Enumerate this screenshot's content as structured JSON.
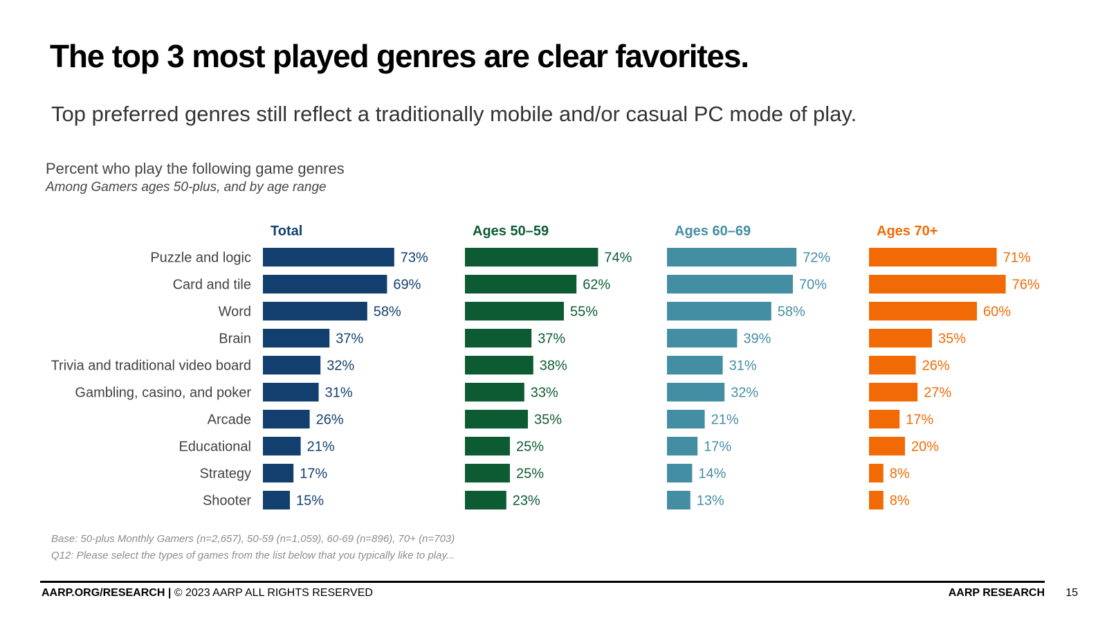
{
  "slide": {
    "title": "The top 3 most played genres are clear favorites.",
    "subtitle": "Top preferred genres still reflect a traditionally mobile and/or casual PC mode of play.",
    "footnote_base": "Base: 50-plus Monthly Gamers (n=2,657), 50-59 (n=1,059), 60-69 (n=896), 70+ (n=703)",
    "footnote_question": "Q12: Please select the types of games from the list below that you typically like to play...",
    "footer_left_bold": "AARP.ORG/RESEARCH |",
    "footer_left_rest": " © 2023 AARP ALL RIGHTS RESERVED",
    "footer_right": "AARP RESEARCH",
    "page_number": "15"
  },
  "chart_data": {
    "type": "bar",
    "orientation": "horizontal",
    "title": "Percent who play the following game genres",
    "subtitle": "Among Gamers ages 50-plus, and by age range",
    "value_suffix": "%",
    "categories": [
      "Puzzle and logic",
      "Card and tile",
      "Word",
      "Brain",
      "Trivia and traditional video board",
      "Gambling, casino, and poker",
      "Arcade",
      "Educational",
      "Strategy",
      "Shooter"
    ],
    "series": [
      {
        "name": "Total",
        "color": "#123f6d",
        "values": [
          73,
          69,
          58,
          37,
          32,
          31,
          26,
          21,
          17,
          15
        ]
      },
      {
        "name": "Ages 50–59",
        "color": "#0c5b32",
        "values": [
          74,
          62,
          55,
          37,
          38,
          33,
          35,
          25,
          25,
          23
        ]
      },
      {
        "name": "Ages 60–69",
        "color": "#448ea4",
        "values": [
          72,
          70,
          58,
          39,
          31,
          32,
          21,
          17,
          14,
          13
        ]
      },
      {
        "name": "Ages 70+",
        "color": "#f26a06",
        "values": [
          71,
          76,
          60,
          35,
          26,
          27,
          17,
          20,
          8,
          8
        ]
      }
    ],
    "xlim": [
      0,
      100
    ],
    "grid": false,
    "legend": "panel headers above each column"
  }
}
